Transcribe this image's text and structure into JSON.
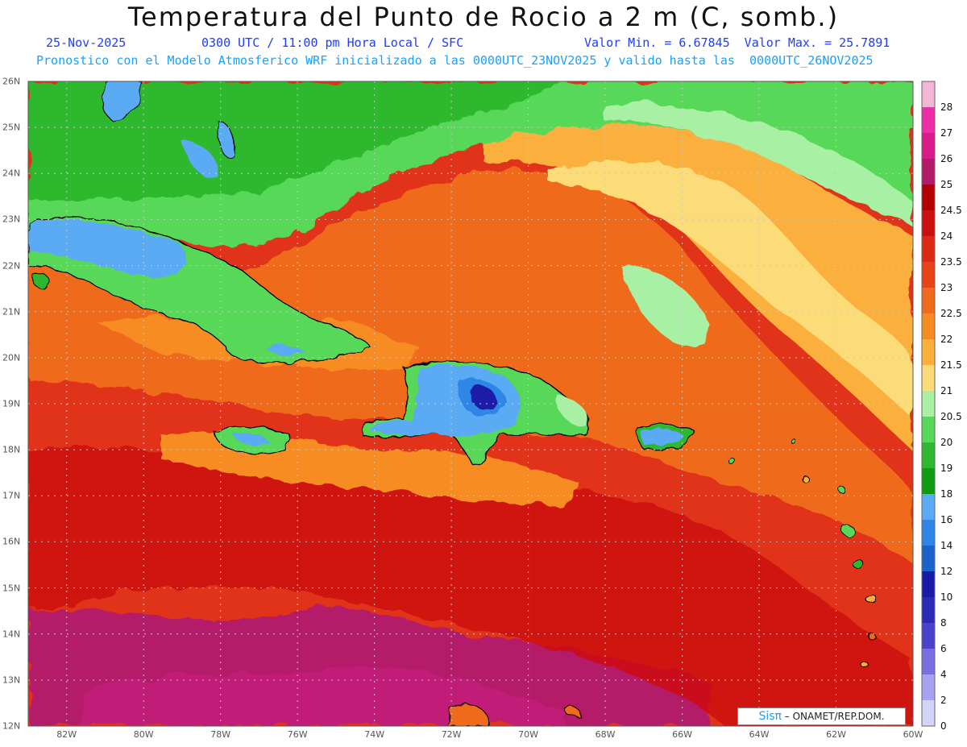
{
  "title": "Temperatura del Punto de Rocio a 2 m (C, somb.)",
  "line1": {
    "date": "25-Nov-2025",
    "time": "0300 UTC / 11:00 pm Hora Local / SFC",
    "minmax": "Valor Min. = 6.67845  Valor Max. = 25.7891"
  },
  "line2": "Pronostico con el Modelo Atmosferico WRF inicializado a las 0000UTC_23NOV2025 y valido hasta las  0000UTC_26NOV2025",
  "lon_labels": [
    "82W",
    "80W",
    "78W",
    "76W",
    "74W",
    "72W",
    "70W",
    "68W",
    "66W",
    "64W",
    "62W",
    "60W"
  ],
  "lat_labels": [
    "26N",
    "25N",
    "24N",
    "23N",
    "22N",
    "21N",
    "20N",
    "19N",
    "18N",
    "17N",
    "16N",
    "15N",
    "14N",
    "13N",
    "12N"
  ],
  "colorbar": {
    "labels": [
      "28",
      "27",
      "26",
      "25",
      "24.5",
      "24",
      "23.5",
      "23",
      "22.5",
      "22",
      "21.5",
      "21",
      "20.5",
      "20",
      "19",
      "18",
      "16",
      "14",
      "12",
      "10",
      "8",
      "6",
      "4",
      "2",
      "0"
    ],
    "colors": [
      "#f4b6d6",
      "#ee2ea6",
      "#d81b88",
      "#b41a6a",
      "#b30000",
      "#cc1010",
      "#dd2a14",
      "#e84418",
      "#f06a1c",
      "#f78c22",
      "#fbb03c",
      "#fcdc78",
      "#a8f0a4",
      "#58d858",
      "#2eb82e",
      "#109c10",
      "#5aaaf4",
      "#2f86e6",
      "#1a62cc",
      "#1a1aa8",
      "#2a2ab6",
      "#4a42cc",
      "#7a6ee0",
      "#a8a0f0",
      "#d4d4f8"
    ]
  },
  "credit": {
    "sis": "Sisπ",
    "text": "– ONAMET/REP.DOM."
  },
  "map": {
    "lon_range": [
      -83,
      -60
    ],
    "lat_range": [
      12,
      26
    ],
    "background": "#e0331a",
    "field_regions": [
      {
        "name": "north-green-band",
        "value": 20,
        "color": "#58d858"
      },
      {
        "name": "northeast-yellow-tongue",
        "value": 21,
        "color": "#fcdc78"
      },
      {
        "name": "central-orange",
        "value": 22,
        "color": "#f78c22"
      },
      {
        "name": "south-magenta",
        "value": 25,
        "color": "#b41a6a"
      }
    ],
    "islands": [
      "Cuba",
      "Hispaniola",
      "Jamaica",
      "Puerto Rico",
      "Bahamas",
      "Lesser Antilles"
    ]
  }
}
